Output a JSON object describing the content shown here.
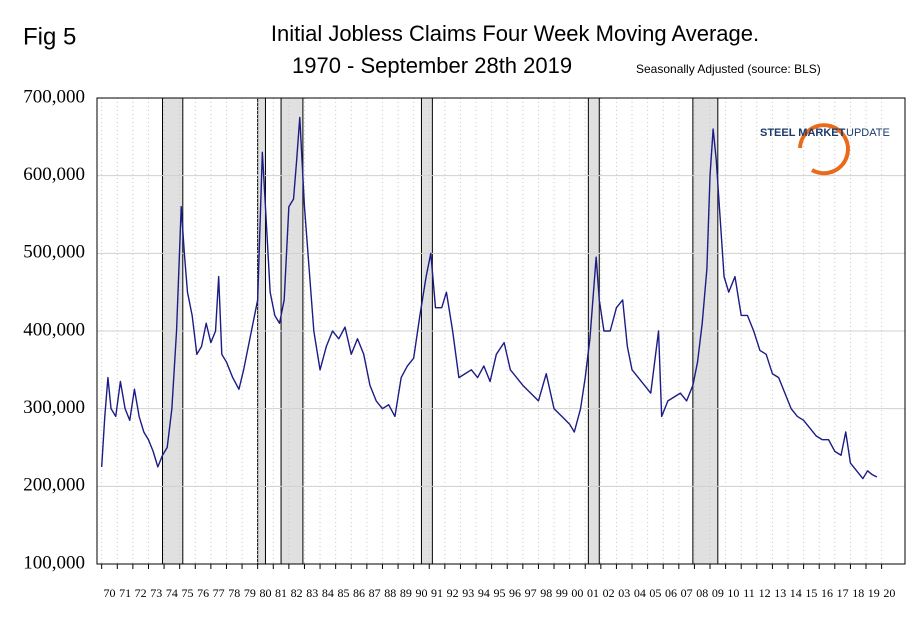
{
  "chart_data": {
    "type": "line",
    "figure_label": "Fig 5",
    "title": "Initial Jobless Claims Four Week Moving Average.",
    "subtitle": "1970 - September 28th 2019",
    "note": "Seasonally Adjusted  (source: BLS)",
    "logo_bold": "STEEL MARKET",
    "logo_light": "UPDATE",
    "color": "#1c1c85",
    "recession_color": "#e0e0e0",
    "grid": true,
    "xlim": [
      1969.7,
      2021.5
    ],
    "ylim": [
      100000,
      700000
    ],
    "yticks": [
      {
        "value": 100000,
        "label": "100,000"
      },
      {
        "value": 200000,
        "label": "200,000"
      },
      {
        "value": 300000,
        "label": "300,000"
      },
      {
        "value": 400000,
        "label": "400,000"
      },
      {
        "value": 500000,
        "label": "500,000"
      },
      {
        "value": 600000,
        "label": "600,000"
      },
      {
        "value": 700000,
        "label": "700,000"
      }
    ],
    "xticks": [
      {
        "value": 1970,
        "label": "70"
      },
      {
        "value": 1971,
        "label": "71"
      },
      {
        "value": 1972,
        "label": "72"
      },
      {
        "value": 1973,
        "label": "73"
      },
      {
        "value": 1974,
        "label": "74"
      },
      {
        "value": 1975,
        "label": "75"
      },
      {
        "value": 1976,
        "label": "76"
      },
      {
        "value": 1977,
        "label": "77"
      },
      {
        "value": 1978,
        "label": "78"
      },
      {
        "value": 1979,
        "label": "79"
      },
      {
        "value": 1980,
        "label": "80"
      },
      {
        "value": 1981,
        "label": "81"
      },
      {
        "value": 1982,
        "label": "82"
      },
      {
        "value": 1983,
        "label": "83"
      },
      {
        "value": 1984,
        "label": "84"
      },
      {
        "value": 1985,
        "label": "85"
      },
      {
        "value": 1986,
        "label": "86"
      },
      {
        "value": 1987,
        "label": "87"
      },
      {
        "value": 1988,
        "label": "88"
      },
      {
        "value": 1989,
        "label": "89"
      },
      {
        "value": 1990,
        "label": "90"
      },
      {
        "value": 1991,
        "label": "91"
      },
      {
        "value": 1992,
        "label": "92"
      },
      {
        "value": 1993,
        "label": "93"
      },
      {
        "value": 1994,
        "label": "94"
      },
      {
        "value": 1995,
        "label": "95"
      },
      {
        "value": 1996,
        "label": "96"
      },
      {
        "value": 1997,
        "label": "97"
      },
      {
        "value": 1998,
        "label": "98"
      },
      {
        "value": 1999,
        "label": "99"
      },
      {
        "value": 2000,
        "label": "00"
      },
      {
        "value": 2001,
        "label": "01"
      },
      {
        "value": 2002,
        "label": "02"
      },
      {
        "value": 2003,
        "label": "03"
      },
      {
        "value": 2004,
        "label": "04"
      },
      {
        "value": 2005,
        "label": "05"
      },
      {
        "value": 2006,
        "label": "06"
      },
      {
        "value": 2007,
        "label": "07"
      },
      {
        "value": 2008,
        "label": "08"
      },
      {
        "value": 2009,
        "label": "09"
      },
      {
        "value": 2010,
        "label": "10"
      },
      {
        "value": 2011,
        "label": "11"
      },
      {
        "value": 2012,
        "label": "12"
      },
      {
        "value": 2013,
        "label": "13"
      },
      {
        "value": 2014,
        "label": "14"
      },
      {
        "value": 2015,
        "label": "15"
      },
      {
        "value": 2016,
        "label": "16"
      },
      {
        "value": 2017,
        "label": "17"
      },
      {
        "value": 2018,
        "label": "18"
      },
      {
        "value": 2019,
        "label": "19"
      },
      {
        "value": 2020,
        "label": "20"
      }
    ],
    "recessions": [
      [
        1973.9,
        1975.2
      ],
      [
        1980.0,
        1980.5
      ],
      [
        1981.5,
        1982.9
      ],
      [
        1990.5,
        1991.2
      ],
      [
        2001.2,
        2001.9
      ],
      [
        2007.9,
        2009.5
      ]
    ],
    "x": [
      1970.0,
      1970.2,
      1970.4,
      1970.6,
      1970.9,
      1971.2,
      1971.5,
      1971.8,
      1972.1,
      1972.4,
      1972.7,
      1973.0,
      1973.3,
      1973.6,
      1973.9,
      1974.2,
      1974.5,
      1974.8,
      1975.1,
      1975.3,
      1975.5,
      1975.8,
      1976.1,
      1976.4,
      1976.7,
      1977.0,
      1977.3,
      1977.5,
      1977.7,
      1978.0,
      1978.4,
      1978.8,
      1979.1,
      1979.4,
      1979.7,
      1980.0,
      1980.3,
      1980.5,
      1980.8,
      1981.1,
      1981.4,
      1981.7,
      1982.0,
      1982.3,
      1982.5,
      1982.7,
      1983.0,
      1983.3,
      1983.6,
      1984.0,
      1984.4,
      1984.8,
      1985.2,
      1985.6,
      1986.0,
      1986.4,
      1986.8,
      1987.2,
      1987.6,
      1988.0,
      1988.4,
      1988.8,
      1989.2,
      1989.6,
      1990.0,
      1990.4,
      1990.8,
      1991.1,
      1991.4,
      1991.8,
      1992.1,
      1992.5,
      1992.9,
      1993.3,
      1993.7,
      1994.1,
      1994.5,
      1994.9,
      1995.3,
      1995.8,
      1996.2,
      1996.6,
      1997.0,
      1997.5,
      1998.0,
      1998.5,
      1999.0,
      1999.5,
      2000.0,
      2000.3,
      2000.7,
      2001.0,
      2001.3,
      2001.7,
      2001.9,
      2002.2,
      2002.6,
      2003.0,
      2003.4,
      2003.7,
      2004.0,
      2004.4,
      2004.8,
      2005.2,
      2005.7,
      2005.9,
      2006.3,
      2006.7,
      2007.1,
      2007.5,
      2007.9,
      2008.2,
      2008.5,
      2008.8,
      2009.0,
      2009.2,
      2009.4,
      2009.6,
      2009.9,
      2010.2,
      2010.6,
      2011.0,
      2011.4,
      2011.8,
      2012.2,
      2012.6,
      2013.0,
      2013.4,
      2013.8,
      2014.2,
      2014.6,
      2015.0,
      2015.4,
      2015.8,
      2016.2,
      2016.6,
      2017.0,
      2017.4,
      2017.7,
      2018.0,
      2018.4,
      2018.8,
      2019.1,
      2019.4,
      2019.7
    ],
    "values": [
      225000,
      290000,
      340000,
      300000,
      290000,
      335000,
      300000,
      285000,
      325000,
      290000,
      270000,
      260000,
      245000,
      225000,
      240000,
      250000,
      300000,
      400000,
      560000,
      500000,
      450000,
      420000,
      370000,
      380000,
      410000,
      385000,
      400000,
      470000,
      370000,
      360000,
      340000,
      325000,
      350000,
      380000,
      410000,
      440000,
      630000,
      560000,
      450000,
      420000,
      410000,
      440000,
      560000,
      570000,
      620000,
      675000,
      560000,
      480000,
      400000,
      350000,
      380000,
      400000,
      390000,
      405000,
      370000,
      390000,
      370000,
      330000,
      310000,
      300000,
      305000,
      290000,
      340000,
      355000,
      365000,
      420000,
      470000,
      500000,
      430000,
      430000,
      450000,
      400000,
      340000,
      345000,
      350000,
      340000,
      355000,
      335000,
      370000,
      385000,
      350000,
      340000,
      330000,
      320000,
      310000,
      345000,
      300000,
      290000,
      280000,
      270000,
      300000,
      340000,
      390000,
      495000,
      440000,
      400000,
      400000,
      430000,
      440000,
      380000,
      350000,
      340000,
      330000,
      320000,
      400000,
      290000,
      310000,
      315000,
      320000,
      310000,
      330000,
      360000,
      410000,
      480000,
      600000,
      660000,
      620000,
      560000,
      470000,
      450000,
      470000,
      420000,
      420000,
      400000,
      375000,
      370000,
      345000,
      340000,
      320000,
      300000,
      290000,
      285000,
      275000,
      265000,
      260000,
      260000,
      245000,
      240000,
      270000,
      230000,
      220000,
      210000,
      220000,
      215000,
      212000
    ]
  }
}
